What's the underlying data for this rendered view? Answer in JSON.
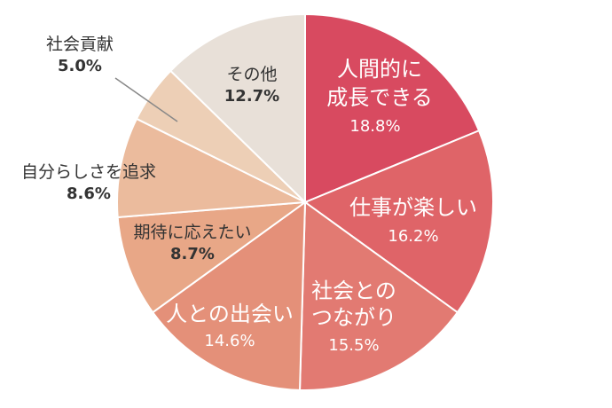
{
  "chart_data": {
    "type": "pie",
    "slices": [
      {
        "name_lines": [
          "人間的に",
          "成長できる"
        ],
        "value": 18.8,
        "value_label": "18.8%",
        "color": "#d84a60"
      },
      {
        "name_lines": [
          "仕事が楽しい"
        ],
        "value": 16.2,
        "value_label": "16.2%",
        "color": "#df6468"
      },
      {
        "name_lines": [
          "社会との",
          "つながり"
        ],
        "value": 15.5,
        "value_label": "15.5%",
        "color": "#e27a72"
      },
      {
        "name_lines": [
          "人との出会い"
        ],
        "value": 14.6,
        "value_label": "14.6%",
        "color": "#e49079"
      },
      {
        "name_lines": [
          "期待に応えたい"
        ],
        "value": 8.7,
        "value_label": "8.7%",
        "color": "#e8a787"
      },
      {
        "name_lines": [
          "自分らしさを追求"
        ],
        "value": 8.6,
        "value_label": "8.6%",
        "color": "#ebbb9d"
      },
      {
        "name_lines": [
          "社会貢献"
        ],
        "value": 5.0,
        "value_label": "5.0%",
        "color": "#edcfb6"
      },
      {
        "name_lines": [
          "その他"
        ],
        "value": 12.7,
        "value_label": "12.7%",
        "color": "#e8e0d8"
      }
    ]
  }
}
